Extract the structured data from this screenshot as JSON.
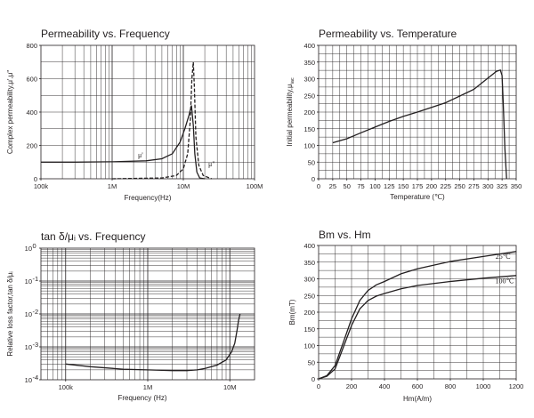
{
  "chart_data": [
    {
      "id": "perm_freq",
      "type": "line",
      "title": "Permeability vs. Frequency",
      "xlabel": "Frequency(Hz)",
      "ylabel": "Complex permeability,μ',μ\"",
      "xscale": "log",
      "xlim": [
        100000,
        100000000
      ],
      "ylim": [
        0,
        800
      ],
      "xticks": [
        {
          "v": 100000,
          "label": "100k"
        },
        {
          "v": 1000000,
          "label": "1M"
        },
        {
          "v": 10000000,
          "label": "10M"
        },
        {
          "v": 100000000,
          "label": "100M"
        }
      ],
      "yticks": [
        {
          "v": 0,
          "label": "0"
        },
        {
          "v": 200,
          "label": "200"
        },
        {
          "v": 400,
          "label": "400"
        },
        {
          "v": 600,
          "label": "600"
        },
        {
          "v": 800,
          "label": "800"
        }
      ],
      "grid": true,
      "series": [
        {
          "name": "μ'",
          "style": "solid",
          "x": [
            100000,
            300000,
            1000000,
            3000000,
            5000000,
            7000000,
            9000000,
            10500000,
            12000000,
            13000000,
            13800000,
            14500000,
            15500000,
            17000000,
            20000000
          ],
          "y": [
            100,
            100,
            102,
            108,
            120,
            150,
            220,
            300,
            380,
            440,
            320,
            150,
            40,
            5,
            0
          ]
        },
        {
          "name": "μ\"",
          "style": "dashed",
          "x": [
            1000000,
            5000000,
            8000000,
            10000000,
            11500000,
            12500000,
            13200000,
            13800000,
            14300000,
            15000000,
            16500000,
            19000000,
            25000000
          ],
          "y": [
            0,
            5,
            20,
            60,
            150,
            350,
            600,
            700,
            550,
            250,
            80,
            20,
            0
          ]
        }
      ],
      "annotations": [
        {
          "text": "μ'",
          "x": 2500000,
          "y": 128
        },
        {
          "text": "μ\"",
          "x": 25000000,
          "y": 75
        }
      ]
    },
    {
      "id": "perm_temp",
      "type": "line",
      "title": "Permeability vs. Temperature",
      "xlabel": "Temperature (℃)",
      "ylabel": "Initial permeability,μ",
      "ylabel_sub": "iac",
      "xlim": [
        0,
        350
      ],
      "ylim": [
        0,
        400
      ],
      "xticks": [
        {
          "v": 0,
          "label": "0"
        },
        {
          "v": 25,
          "label": "25"
        },
        {
          "v": 50,
          "label": "50"
        },
        {
          "v": 75,
          "label": "75"
        },
        {
          "v": 100,
          "label": "100"
        },
        {
          "v": 125,
          "label": "125"
        },
        {
          "v": 150,
          "label": "150"
        },
        {
          "v": 175,
          "label": "175"
        },
        {
          "v": 200,
          "label": "200"
        },
        {
          "v": 225,
          "label": "225"
        },
        {
          "v": 250,
          "label": "250"
        },
        {
          "v": 275,
          "label": "275"
        },
        {
          "v": 300,
          "label": "300"
        },
        {
          "v": 325,
          "label": "325"
        },
        {
          "v": 350,
          "label": "350"
        }
      ],
      "yticks": [
        {
          "v": 0,
          "label": "0"
        },
        {
          "v": 50,
          "label": "50"
        },
        {
          "v": 100,
          "label": "100"
        },
        {
          "v": 150,
          "label": "150"
        },
        {
          "v": 200,
          "label": "200"
        },
        {
          "v": 250,
          "label": "250"
        },
        {
          "v": 300,
          "label": "300"
        },
        {
          "v": 350,
          "label": "350"
        },
        {
          "v": 400,
          "label": "400"
        }
      ],
      "grid": true,
      "series": [
        {
          "name": "",
          "style": "solid",
          "x": [
            25,
            50,
            75,
            100,
            125,
            150,
            175,
            200,
            225,
            250,
            275,
            300,
            315,
            322,
            325,
            327,
            330,
            333
          ],
          "y": [
            108,
            120,
            138,
            155,
            172,
            187,
            200,
            214,
            228,
            248,
            268,
            302,
            322,
            326,
            310,
            230,
            90,
            0
          ]
        }
      ]
    },
    {
      "id": "tan_freq",
      "type": "line",
      "title": "tan δ/μᵢ vs. Frequency",
      "xlabel": "Frequency (Hz)",
      "ylabel": "Relative loss factor,tan δ/μᵢ",
      "xscale": "log",
      "yscale": "log",
      "xlim": [
        50000,
        20000000
      ],
      "ylim": [
        0.0001,
        1
      ],
      "xticks": [
        {
          "v": 100000,
          "label": "100k"
        },
        {
          "v": 1000000,
          "label": "1M"
        },
        {
          "v": 10000000,
          "label": "10M"
        }
      ],
      "yticks": [
        {
          "v": 0.0001,
          "label": "10"
        },
        {
          "v": 0.001,
          "label": "10"
        },
        {
          "v": 0.01,
          "label": "10"
        },
        {
          "v": 0.1,
          "label": "10"
        },
        {
          "v": 1,
          "label": "10"
        }
      ],
      "ytick_exponents": [
        "-4",
        "-3",
        "-2",
        "-1",
        "0"
      ],
      "grid": true,
      "series": [
        {
          "name": "",
          "style": "solid",
          "x": [
            100000,
            200000,
            500000,
            1000000,
            2000000,
            3000000,
            4000000,
            5000000,
            7000000,
            9000000,
            10500000,
            11500000,
            12200000,
            12800000,
            13300000
          ],
          "y": [
            0.0003,
            0.00025,
            0.00021,
            0.0002,
            0.00019,
            0.00019,
            0.0002,
            0.00022,
            0.00028,
            0.0004,
            0.0007,
            0.0013,
            0.003,
            0.0065,
            0.01
          ]
        }
      ]
    },
    {
      "id": "bm_hm",
      "type": "line",
      "title": "Bm vs. Hm",
      "xlabel": "Hm(A/m)",
      "ylabel": "Bm(mT)",
      "xlim": [
        0,
        1200
      ],
      "ylim": [
        0,
        400
      ],
      "xticks": [
        {
          "v": 0,
          "label": "0"
        },
        {
          "v": 200,
          "label": "200"
        },
        {
          "v": 400,
          "label": "400"
        },
        {
          "v": 600,
          "label": "600"
        },
        {
          "v": 800,
          "label": "800"
        },
        {
          "v": 1000,
          "label": "1000"
        },
        {
          "v": 1200,
          "label": "1200"
        }
      ],
      "yticks": [
        {
          "v": 0,
          "label": "0"
        },
        {
          "v": 50,
          "label": "50"
        },
        {
          "v": 100,
          "label": "100"
        },
        {
          "v": 150,
          "label": "150"
        },
        {
          "v": 200,
          "label": "200"
        },
        {
          "v": 250,
          "label": "250"
        },
        {
          "v": 300,
          "label": "300"
        },
        {
          "v": 350,
          "label": "350"
        },
        {
          "v": 400,
          "label": "400"
        }
      ],
      "grid": true,
      "series": [
        {
          "name": "25℃",
          "style": "solid",
          "x": [
            0,
            50,
            100,
            150,
            200,
            250,
            300,
            350,
            400,
            500,
            600,
            800,
            1000,
            1200
          ],
          "y": [
            0,
            10,
            40,
            110,
            180,
            235,
            265,
            282,
            292,
            315,
            330,
            352,
            367,
            382
          ]
        },
        {
          "name": "100℃",
          "style": "solid",
          "x": [
            0,
            50,
            100,
            150,
            200,
            250,
            300,
            350,
            400,
            500,
            600,
            800,
            1000,
            1200
          ],
          "y": [
            0,
            8,
            30,
            95,
            160,
            210,
            235,
            248,
            256,
            270,
            280,
            292,
            302,
            310
          ]
        }
      ],
      "annotations": [
        {
          "text": "25℃",
          "x": 1120,
          "y": 360
        },
        {
          "text": "100℃",
          "x": 1130,
          "y": 287
        }
      ]
    }
  ]
}
